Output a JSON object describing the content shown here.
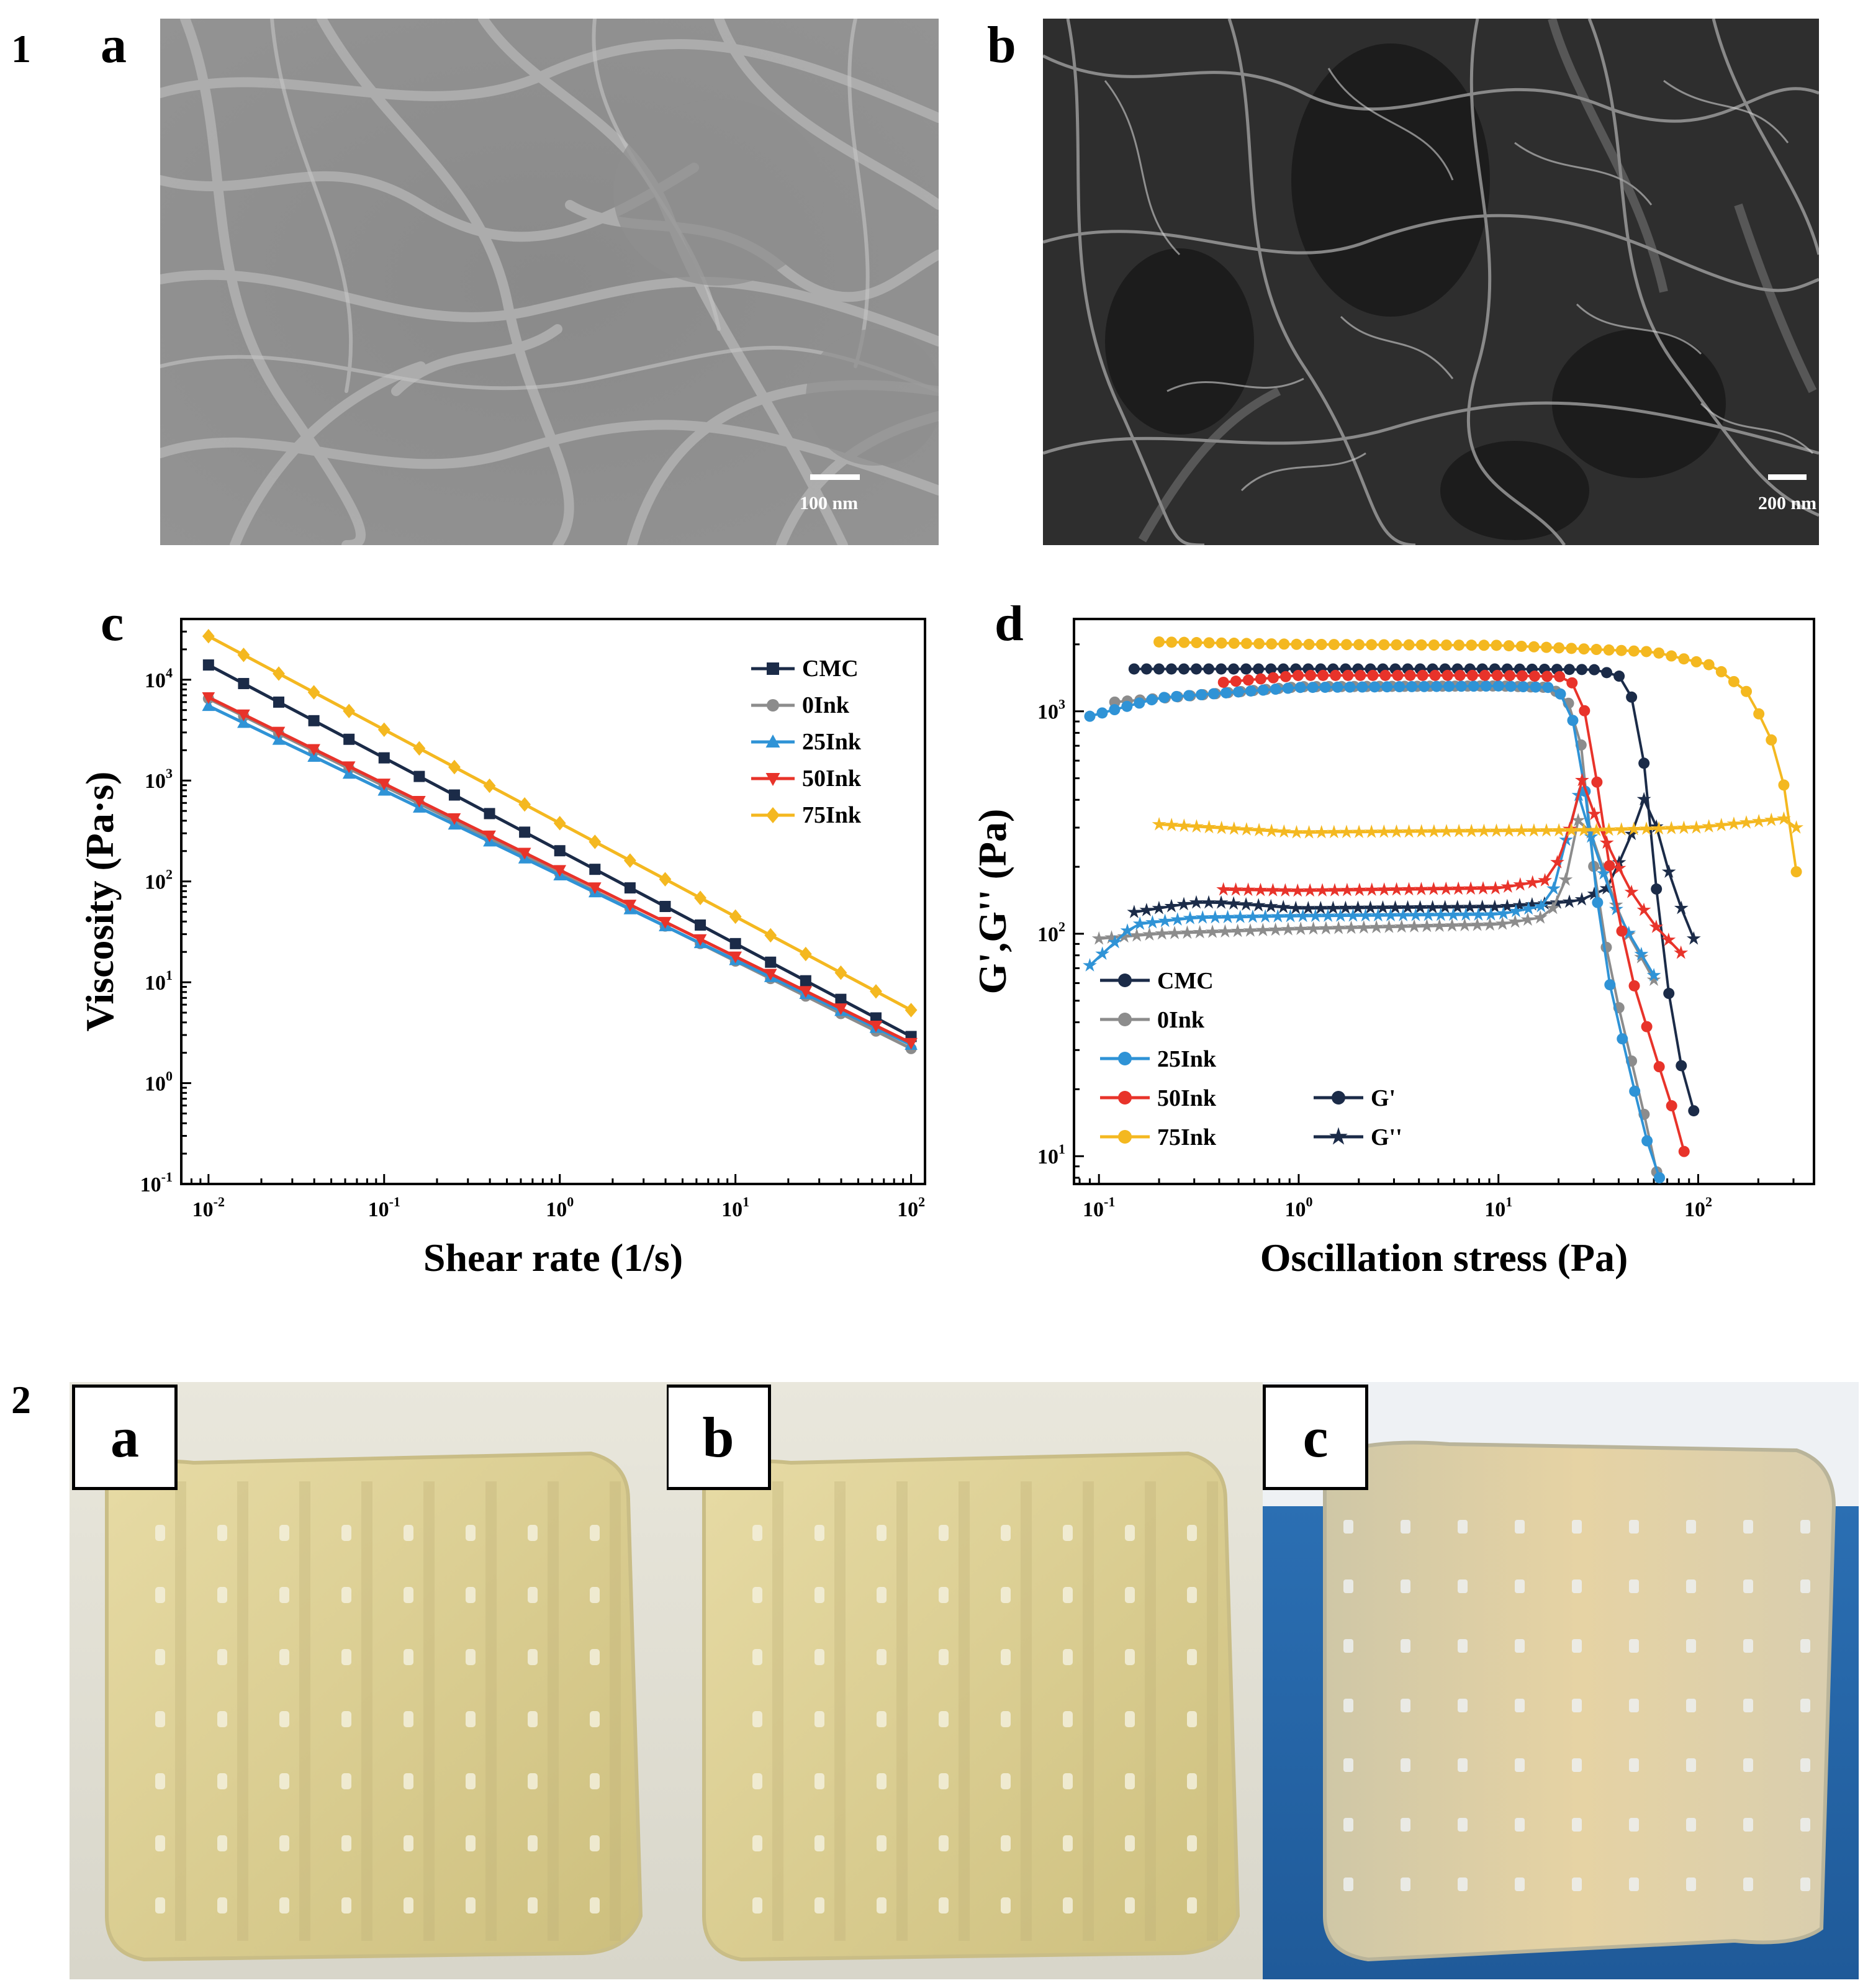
{
  "figure1": {
    "number": "1",
    "panel_a": {
      "letter": "a",
      "scale_bar": "100 nm"
    },
    "panel_b": {
      "letter": "b",
      "scale_bar": "200 nm"
    }
  },
  "figure2": {
    "number": "2",
    "photos": [
      {
        "letter": "a"
      },
      {
        "letter": "b"
      },
      {
        "letter": "c"
      }
    ]
  },
  "chart_data": [
    {
      "panel": "c",
      "type": "line",
      "xlabel": "Shear rate (1/s)",
      "ylabel": "Viscosity (Pa·s)",
      "xscale": "log",
      "yscale": "log",
      "xlim": [
        0.007,
        120
      ],
      "ylim": [
        0.1,
        40000
      ],
      "x_ticks": [
        {
          "v": 0.01,
          "b": "10",
          "e": "-2"
        },
        {
          "v": 0.1,
          "b": "10",
          "e": "-1"
        },
        {
          "v": 1,
          "b": "10",
          "e": "0"
        },
        {
          "v": 10,
          "b": "10",
          "e": "1"
        },
        {
          "v": 100,
          "b": "10",
          "e": "2"
        }
      ],
      "y_ticks": [
        {
          "v": 0.1,
          "b": "10",
          "e": "-1"
        },
        {
          "v": 1,
          "b": "10",
          "e": "0"
        },
        {
          "v": 10,
          "b": "10",
          "e": "1"
        },
        {
          "v": 100,
          "b": "10",
          "e": "2"
        },
        {
          "v": 1000,
          "b": "10",
          "e": "3"
        },
        {
          "v": 10000,
          "b": "10",
          "e": "4"
        }
      ],
      "legend_position": "top-right",
      "series": [
        {
          "name": "CMC",
          "color": "#1b2b48",
          "marker": "square",
          "start": 14000,
          "end": 2.9
        },
        {
          "name": "0Ink",
          "color": "#8c8c8c",
          "marker": "circle",
          "start": 6500,
          "end": 2.2
        },
        {
          "name": "25Ink",
          "color": "#2f93d6",
          "marker": "triangle-up",
          "start": 5500,
          "end": 2.4
        },
        {
          "name": "50Ink",
          "color": "#e8332a",
          "marker": "triangle-down",
          "start": 6700,
          "end": 2.5
        },
        {
          "name": "75Ink",
          "color": "#f4b820",
          "marker": "diamond",
          "start": 27000,
          "end": 5.3
        }
      ]
    },
    {
      "panel": "d",
      "type": "line",
      "xlabel": "Oscillation stress (Pa)",
      "ylabel": "G',G'' (Pa)",
      "xscale": "log",
      "yscale": "log",
      "xlim": [
        0.075,
        380
      ],
      "ylim": [
        7.5,
        2600
      ],
      "x_ticks": [
        {
          "v": 0.1,
          "b": "10",
          "e": "-1"
        },
        {
          "v": 1,
          "b": "10",
          "e": "0"
        },
        {
          "v": 10,
          "b": "10",
          "e": "1"
        },
        {
          "v": 100,
          "b": "10",
          "e": "2"
        }
      ],
      "y_ticks": [
        {
          "v": 10,
          "b": "10",
          "e": "1"
        },
        {
          "v": 100,
          "b": "10",
          "e": "2"
        },
        {
          "v": 1000,
          "b": "10",
          "e": "3"
        }
      ],
      "legend_position": "bottom-left",
      "legend_markers": [
        {
          "name": "G'",
          "marker": "circle"
        },
        {
          "name": "G''",
          "marker": "star"
        }
      ],
      "series": [
        {
          "name": "CMC",
          "color": "#1b2b48",
          "G_prime": [
            [
              0.15,
              1550
            ],
            [
              1,
              1550
            ],
            [
              10,
              1550
            ],
            [
              30,
              1540
            ],
            [
              40,
              1450
            ],
            [
              48,
              1100
            ],
            [
              55,
              500
            ],
            [
              60,
              200
            ],
            [
              70,
              60
            ],
            [
              80,
              28
            ],
            [
              95,
              16
            ]
          ],
          "G_double_prime": [
            [
              0.15,
              125
            ],
            [
              0.3,
              138
            ],
            [
              0.4,
              138
            ],
            [
              1,
              130
            ],
            [
              10,
              132
            ],
            [
              25,
              140
            ],
            [
              35,
              160
            ],
            [
              45,
              260
            ],
            [
              55,
              430
            ],
            [
              65,
              260
            ],
            [
              75,
              160
            ],
            [
              95,
              95
            ]
          ]
        },
        {
          "name": "0Ink",
          "color": "#8c8c8c",
          "G_prime": [
            [
              0.12,
              1100
            ],
            [
              1,
              1290
            ],
            [
              10,
              1300
            ],
            [
              18,
              1280
            ],
            [
              22,
              1150
            ],
            [
              26,
              700
            ],
            [
              30,
              200
            ],
            [
              36,
              70
            ],
            [
              45,
              30
            ],
            [
              55,
              14
            ],
            [
              62,
              8.5
            ]
          ],
          "G_double_prime": [
            [
              0.1,
              95
            ],
            [
              0.2,
              100
            ],
            [
              1,
              105
            ],
            [
              10,
              110
            ],
            [
              18,
              120
            ],
            [
              22,
              180
            ],
            [
              26,
              380
            ],
            [
              32,
              220
            ],
            [
              42,
              110
            ],
            [
              60,
              62
            ]
          ]
        },
        {
          "name": "25Ink",
          "color": "#2f93d6",
          "G_prime": [
            [
              0.09,
              950
            ],
            [
              0.2,
              1150
            ],
            [
              1,
              1280
            ],
            [
              10,
              1300
            ],
            [
              18,
              1280
            ],
            [
              22,
              1150
            ],
            [
              26,
              650
            ],
            [
              30,
              180
            ],
            [
              36,
              60
            ],
            [
              45,
              25
            ],
            [
              55,
              12
            ],
            [
              64,
              8
            ]
          ],
          "G_double_prime": [
            [
              0.09,
              72
            ],
            [
              0.15,
              110
            ],
            [
              0.3,
              118
            ],
            [
              1,
              120
            ],
            [
              10,
              122
            ],
            [
              18,
              135
            ],
            [
              21,
              230
            ],
            [
              25,
              430
            ],
            [
              30,
              250
            ],
            [
              40,
              120
            ],
            [
              60,
              65
            ]
          ]
        },
        {
          "name": "50Ink",
          "color": "#e8332a",
          "G_prime": [
            [
              0.42,
              1350
            ],
            [
              1,
              1450
            ],
            [
              10,
              1450
            ],
            [
              22,
              1430
            ],
            [
              26,
              1200
            ],
            [
              30,
              600
            ],
            [
              36,
              200
            ],
            [
              45,
              70
            ],
            [
              60,
              30
            ],
            [
              75,
              16
            ],
            [
              85,
              10.5
            ]
          ],
          "G_double_prime": [
            [
              0.42,
              158
            ],
            [
              1,
              156
            ],
            [
              10,
              160
            ],
            [
              18,
              175
            ],
            [
              22,
              260
            ],
            [
              26,
              500
            ],
            [
              32,
              300
            ],
            [
              45,
              160
            ],
            [
              60,
              110
            ],
            [
              82,
              82
            ]
          ]
        },
        {
          "name": "75Ink",
          "color": "#f4b820",
          "G_prime": [
            [
              0.2,
              2050
            ],
            [
              1,
              2000
            ],
            [
              10,
              1980
            ],
            [
              60,
              1850
            ],
            [
              120,
              1600
            ],
            [
              180,
              1200
            ],
            [
              240,
              700
            ],
            [
              280,
              400
            ],
            [
              310,
              190
            ]
          ],
          "G_double_prime": [
            [
              0.2,
              310
            ],
            [
              1,
              285
            ],
            [
              10,
              290
            ],
            [
              30,
              292
            ],
            [
              100,
              300
            ],
            [
              200,
              320
            ],
            [
              280,
              330
            ],
            [
              310,
              300
            ]
          ]
        }
      ]
    }
  ]
}
